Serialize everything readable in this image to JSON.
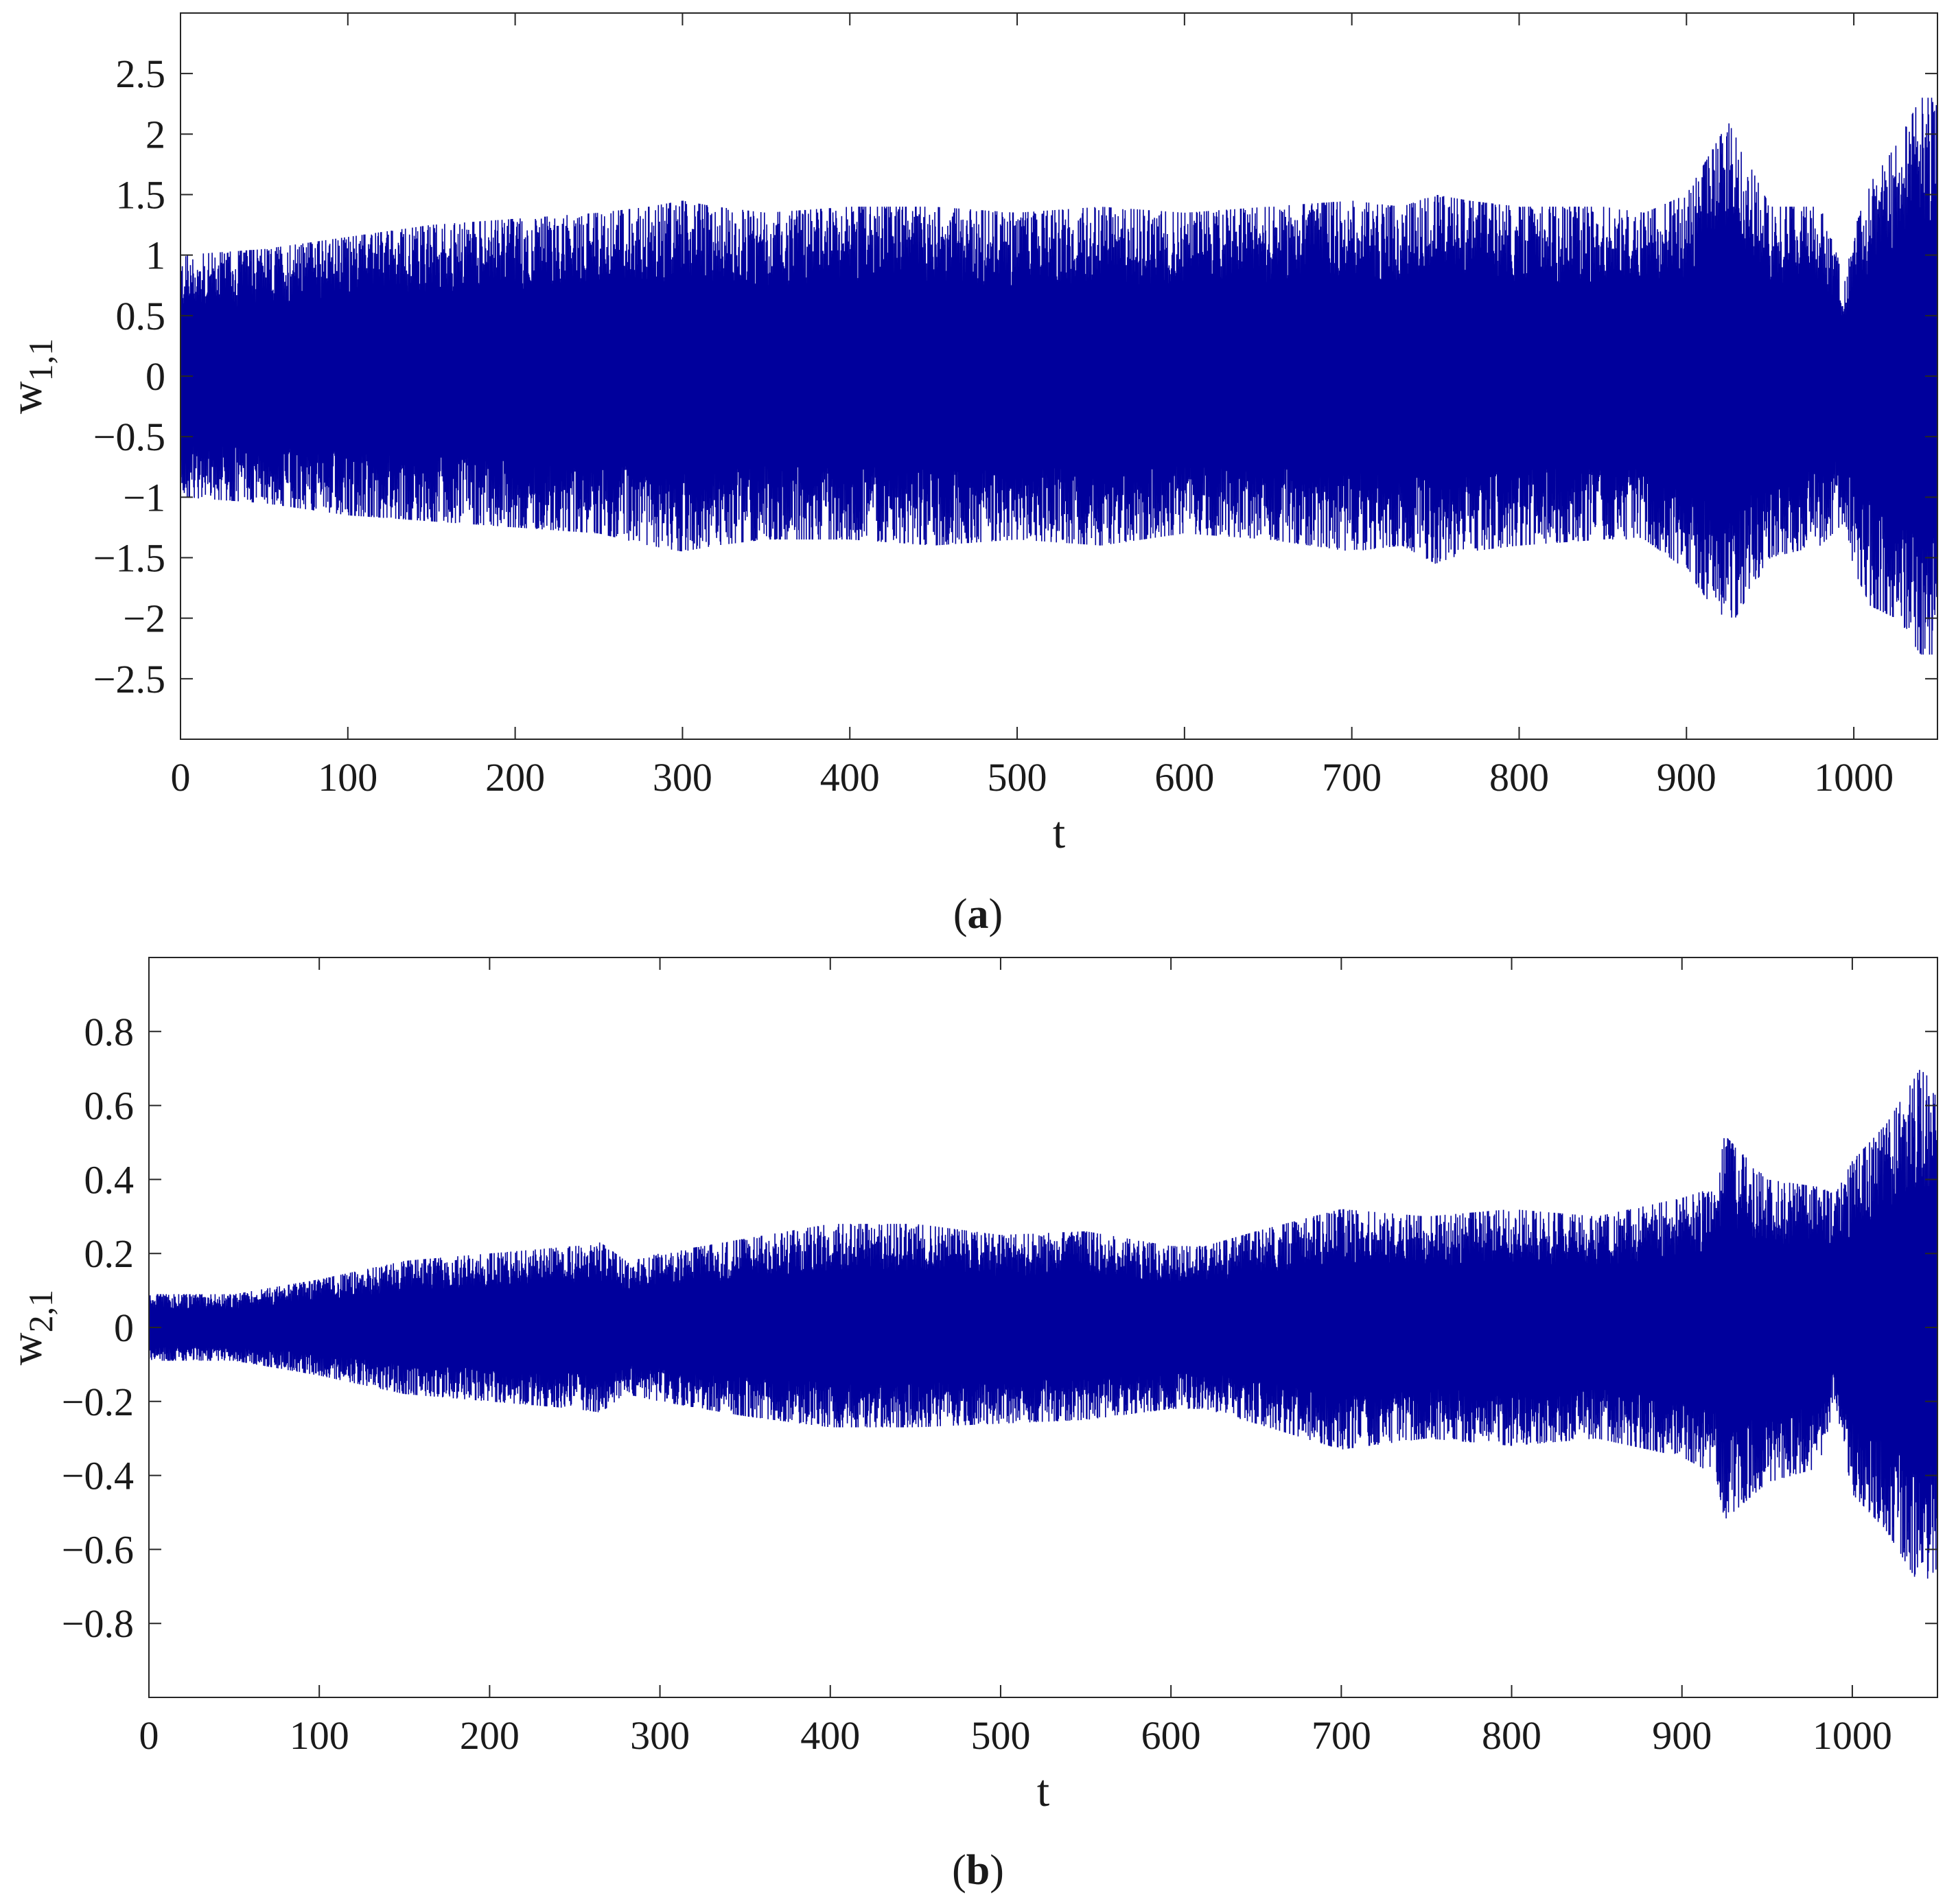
{
  "figure": {
    "captions": [
      "(a)",
      "(b)"
    ],
    "caption_parts": [
      {
        "open": "(",
        "letter": "a",
        "close": ")"
      },
      {
        "open": "(",
        "letter": "b",
        "close": ")"
      }
    ]
  },
  "chart_data": [
    {
      "id": "panel-a",
      "type": "line",
      "title": "",
      "xlabel": "t",
      "ylabel_base": "w",
      "ylabel_sub": "1,1",
      "xlim": [
        0,
        1050
      ],
      "ylim": [
        -3,
        3
      ],
      "xticks": [
        0,
        100,
        200,
        300,
        400,
        500,
        600,
        700,
        800,
        900,
        1000
      ],
      "xtick_labels": [
        "0",
        "100",
        "200",
        "300",
        "400",
        "500",
        "600",
        "700",
        "800",
        "900",
        "1000"
      ],
      "yticks": [
        -2.5,
        -2,
        -1.5,
        -1,
        -0.5,
        0,
        0.5,
        1,
        1.5,
        2,
        2.5
      ],
      "ytick_labels": [
        "−2.5",
        "−2",
        "−1.5",
        "−1",
        "−0.5",
        "0",
        "0.5",
        "1",
        "1.5",
        "2",
        "2.5"
      ],
      "grid": false,
      "line_color": "#00009c",
      "series": [
        {
          "envelope_t": [
            0,
            50,
            100,
            150,
            200,
            250,
            280,
            300,
            320,
            350,
            400,
            450,
            500,
            550,
            600,
            650,
            700,
            730,
            750,
            770,
            800,
            850,
            875,
            900,
            925,
            950,
            980,
            995,
            1000,
            1010,
            1025,
            1040,
            1050
          ],
          "envelope_upper": [
            1.0,
            1.05,
            1.15,
            1.25,
            1.3,
            1.35,
            1.4,
            1.45,
            1.4,
            1.35,
            1.4,
            1.4,
            1.35,
            1.4,
            1.35,
            1.4,
            1.45,
            1.4,
            1.5,
            1.45,
            1.4,
            1.4,
            1.35,
            1.5,
            2.1,
            1.4,
            1.4,
            0.8,
            1.2,
            1.6,
            1.9,
            2.3,
            2.3
          ],
          "envelope_lower": [
            -1.0,
            -1.05,
            -1.15,
            -1.2,
            -1.25,
            -1.3,
            -1.4,
            -1.45,
            -1.4,
            -1.35,
            -1.35,
            -1.4,
            -1.35,
            -1.4,
            -1.3,
            -1.35,
            -1.45,
            -1.4,
            -1.55,
            -1.45,
            -1.4,
            -1.35,
            -1.35,
            -1.6,
            -2.1,
            -1.5,
            -1.4,
            -1.2,
            -1.6,
            -1.9,
            -2.0,
            -2.3,
            -2.3
          ]
        }
      ]
    },
    {
      "id": "panel-b",
      "type": "line",
      "title": "",
      "xlabel": "t",
      "ylabel_base": "w",
      "ylabel_sub": "2,1",
      "xlim": [
        0,
        1050
      ],
      "ylim": [
        -1,
        1
      ],
      "xticks": [
        0,
        100,
        200,
        300,
        400,
        500,
        600,
        700,
        800,
        900,
        1000
      ],
      "xtick_labels": [
        "0",
        "100",
        "200",
        "300",
        "400",
        "500",
        "600",
        "700",
        "800",
        "900",
        "1000"
      ],
      "yticks": [
        -0.8,
        -0.6,
        -0.4,
        -0.2,
        0,
        0.2,
        0.4,
        0.6,
        0.8
      ],
      "ytick_labels": [
        "−0.8",
        "−0.6",
        "−0.4",
        "−0.2",
        "0",
        "0.2",
        "0.4",
        "0.6",
        "0.8"
      ],
      "grid": false,
      "line_color": "#00009c",
      "series": [
        {
          "envelope_t": [
            0,
            50,
            100,
            150,
            200,
            250,
            265,
            280,
            300,
            350,
            400,
            450,
            500,
            550,
            600,
            620,
            650,
            700,
            750,
            800,
            850,
            900,
            920,
            925,
            950,
            980,
            990,
            1000,
            1020,
            1040,
            1050
          ],
          "envelope_upper": [
            0.09,
            0.09,
            0.13,
            0.18,
            0.2,
            0.22,
            0.23,
            0.18,
            0.2,
            0.24,
            0.28,
            0.28,
            0.25,
            0.26,
            0.22,
            0.22,
            0.26,
            0.32,
            0.3,
            0.32,
            0.3,
            0.35,
            0.38,
            0.52,
            0.4,
            0.38,
            0.36,
            0.45,
            0.55,
            0.7,
            0.65
          ],
          "envelope_lower": [
            -0.09,
            -0.09,
            -0.13,
            -0.18,
            -0.2,
            -0.22,
            -0.23,
            -0.18,
            -0.2,
            -0.24,
            -0.27,
            -0.27,
            -0.26,
            -0.25,
            -0.22,
            -0.22,
            -0.26,
            -0.33,
            -0.3,
            -0.32,
            -0.3,
            -0.35,
            -0.4,
            -0.52,
            -0.42,
            -0.38,
            -0.2,
            -0.45,
            -0.55,
            -0.7,
            -0.65
          ]
        }
      ]
    }
  ]
}
